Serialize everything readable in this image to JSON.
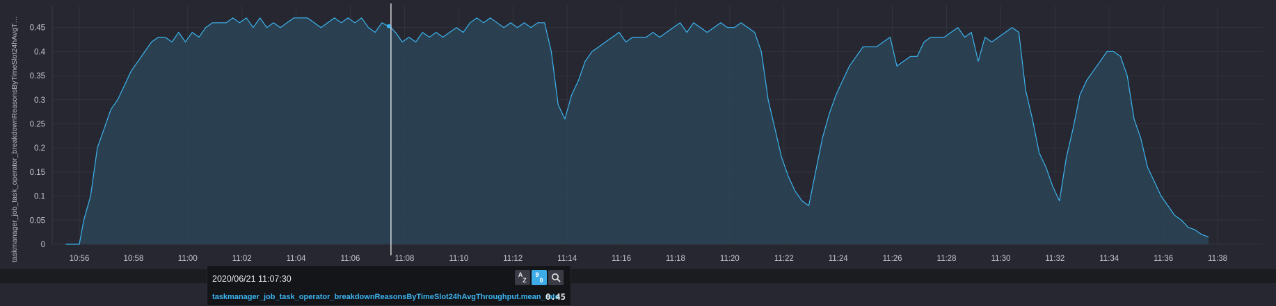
{
  "chart_data": {
    "type": "area",
    "ylabel": "taskmanager_job_task_operator_breakdownReasonsByTimeSlot24hAvgT…",
    "ylim": [
      0,
      0.5
    ],
    "yticks": [
      "0",
      "0.05",
      "0.1",
      "0.15",
      "0.2",
      "0.25",
      "0.3",
      "0.35",
      "0.4",
      "0.45"
    ],
    "xticks": [
      "10:56",
      "10:58",
      "11:00",
      "11:02",
      "11:04",
      "11:06",
      "11:08",
      "11:10",
      "11:12",
      "11:14",
      "11:16",
      "11:18",
      "11:20",
      "11:22",
      "11:24",
      "11:26",
      "11:28",
      "11:30",
      "11:32",
      "11:34",
      "11:36",
      "11:38"
    ],
    "grid": true,
    "colors": {
      "line": "#3cb4f0",
      "fill": "#2c4556",
      "cursor": "#ffffff"
    },
    "cursor_time": "11:07:30",
    "series": [
      {
        "name": "taskmanager_job_task_operator_breakdownReasonsByTimeSlot24hAvgThroughput.mean_rate",
        "points": [
          [
            "10:55:30",
            0
          ],
          [
            "10:56:00",
            0
          ],
          [
            "10:56:10",
            0.05
          ],
          [
            "10:56:25",
            0.1
          ],
          [
            "10:56:40",
            0.2
          ],
          [
            "10:56:55",
            0.24
          ],
          [
            "10:57:10",
            0.28
          ],
          [
            "10:57:25",
            0.3
          ],
          [
            "10:57:40",
            0.33
          ],
          [
            "10:57:55",
            0.36
          ],
          [
            "10:58:10",
            0.38
          ],
          [
            "10:58:25",
            0.4
          ],
          [
            "10:58:40",
            0.42
          ],
          [
            "10:58:55",
            0.43
          ],
          [
            "10:59:10",
            0.43
          ],
          [
            "10:59:25",
            0.42
          ],
          [
            "10:59:40",
            0.44
          ],
          [
            "10:59:55",
            0.42
          ],
          [
            "11:00:10",
            0.44
          ],
          [
            "11:00:25",
            0.43
          ],
          [
            "11:00:40",
            0.45
          ],
          [
            "11:00:55",
            0.46
          ],
          [
            "11:01:10",
            0.46
          ],
          [
            "11:01:25",
            0.46
          ],
          [
            "11:01:40",
            0.47
          ],
          [
            "11:01:55",
            0.46
          ],
          [
            "11:02:10",
            0.47
          ],
          [
            "11:02:25",
            0.45
          ],
          [
            "11:02:40",
            0.47
          ],
          [
            "11:02:55",
            0.45
          ],
          [
            "11:03:10",
            0.46
          ],
          [
            "11:03:25",
            0.45
          ],
          [
            "11:03:40",
            0.46
          ],
          [
            "11:03:55",
            0.47
          ],
          [
            "11:04:10",
            0.47
          ],
          [
            "11:04:25",
            0.47
          ],
          [
            "11:04:40",
            0.46
          ],
          [
            "11:04:55",
            0.45
          ],
          [
            "11:05:10",
            0.46
          ],
          [
            "11:05:25",
            0.47
          ],
          [
            "11:05:40",
            0.46
          ],
          [
            "11:05:55",
            0.47
          ],
          [
            "11:06:10",
            0.46
          ],
          [
            "11:06:25",
            0.47
          ],
          [
            "11:06:40",
            0.45
          ],
          [
            "11:06:55",
            0.44
          ],
          [
            "11:07:10",
            0.46
          ],
          [
            "11:07:30",
            0.45
          ],
          [
            "11:07:40",
            0.44
          ],
          [
            "11:07:55",
            0.42
          ],
          [
            "11:08:10",
            0.43
          ],
          [
            "11:08:25",
            0.42
          ],
          [
            "11:08:40",
            0.44
          ],
          [
            "11:08:55",
            0.43
          ],
          [
            "11:09:10",
            0.44
          ],
          [
            "11:09:25",
            0.43
          ],
          [
            "11:09:40",
            0.44
          ],
          [
            "11:09:55",
            0.45
          ],
          [
            "11:10:10",
            0.44
          ],
          [
            "11:10:25",
            0.46
          ],
          [
            "11:10:40",
            0.47
          ],
          [
            "11:10:55",
            0.46
          ],
          [
            "11:11:10",
            0.47
          ],
          [
            "11:11:25",
            0.46
          ],
          [
            "11:11:40",
            0.45
          ],
          [
            "11:11:55",
            0.46
          ],
          [
            "11:12:10",
            0.45
          ],
          [
            "11:12:25",
            0.46
          ],
          [
            "11:12:40",
            0.45
          ],
          [
            "11:12:55",
            0.46
          ],
          [
            "11:13:10",
            0.46
          ],
          [
            "11:13:25",
            0.4
          ],
          [
            "11:13:40",
            0.29
          ],
          [
            "11:13:55",
            0.26
          ],
          [
            "11:14:10",
            0.31
          ],
          [
            "11:14:25",
            0.34
          ],
          [
            "11:14:40",
            0.38
          ],
          [
            "11:14:55",
            0.4
          ],
          [
            "11:15:10",
            0.41
          ],
          [
            "11:15:25",
            0.42
          ],
          [
            "11:15:40",
            0.43
          ],
          [
            "11:15:55",
            0.44
          ],
          [
            "11:16:10",
            0.42
          ],
          [
            "11:16:25",
            0.43
          ],
          [
            "11:16:40",
            0.43
          ],
          [
            "11:16:55",
            0.43
          ],
          [
            "11:17:10",
            0.44
          ],
          [
            "11:17:25",
            0.43
          ],
          [
            "11:17:40",
            0.44
          ],
          [
            "11:17:55",
            0.45
          ],
          [
            "11:18:10",
            0.46
          ],
          [
            "11:18:25",
            0.44
          ],
          [
            "11:18:40",
            0.46
          ],
          [
            "11:18:55",
            0.45
          ],
          [
            "11:19:10",
            0.44
          ],
          [
            "11:19:25",
            0.45
          ],
          [
            "11:19:40",
            0.46
          ],
          [
            "11:19:55",
            0.45
          ],
          [
            "11:20:10",
            0.45
          ],
          [
            "11:20:25",
            0.46
          ],
          [
            "11:20:40",
            0.45
          ],
          [
            "11:20:55",
            0.44
          ],
          [
            "11:21:10",
            0.4
          ],
          [
            "11:21:25",
            0.3
          ],
          [
            "11:21:40",
            0.24
          ],
          [
            "11:21:55",
            0.18
          ],
          [
            "11:22:10",
            0.14
          ],
          [
            "11:22:25",
            0.11
          ],
          [
            "11:22:40",
            0.09
          ],
          [
            "11:22:55",
            0.08
          ],
          [
            "11:23:10",
            0.15
          ],
          [
            "11:23:25",
            0.22
          ],
          [
            "11:23:40",
            0.27
          ],
          [
            "11:23:55",
            0.31
          ],
          [
            "11:24:10",
            0.34
          ],
          [
            "11:24:25",
            0.37
          ],
          [
            "11:24:40",
            0.39
          ],
          [
            "11:24:55",
            0.41
          ],
          [
            "11:25:10",
            0.41
          ],
          [
            "11:25:25",
            0.41
          ],
          [
            "11:25:40",
            0.42
          ],
          [
            "11:25:55",
            0.43
          ],
          [
            "11:26:10",
            0.37
          ],
          [
            "11:26:25",
            0.38
          ],
          [
            "11:26:40",
            0.39
          ],
          [
            "11:26:55",
            0.39
          ],
          [
            "11:27:10",
            0.42
          ],
          [
            "11:27:25",
            0.43
          ],
          [
            "11:27:40",
            0.43
          ],
          [
            "11:27:55",
            0.43
          ],
          [
            "11:28:10",
            0.44
          ],
          [
            "11:28:25",
            0.45
          ],
          [
            "11:28:40",
            0.43
          ],
          [
            "11:28:55",
            0.44
          ],
          [
            "11:29:10",
            0.38
          ],
          [
            "11:29:25",
            0.43
          ],
          [
            "11:29:40",
            0.42
          ],
          [
            "11:29:55",
            0.43
          ],
          [
            "11:30:10",
            0.44
          ],
          [
            "11:30:25",
            0.45
          ],
          [
            "11:30:40",
            0.44
          ],
          [
            "11:30:55",
            0.32
          ],
          [
            "11:31:10",
            0.26
          ],
          [
            "11:31:25",
            0.19
          ],
          [
            "11:31:40",
            0.16
          ],
          [
            "11:31:55",
            0.12
          ],
          [
            "11:32:10",
            0.09
          ],
          [
            "11:32:25",
            0.18
          ],
          [
            "11:32:40",
            0.24
          ],
          [
            "11:32:55",
            0.31
          ],
          [
            "11:33:10",
            0.34
          ],
          [
            "11:33:25",
            0.36
          ],
          [
            "11:33:40",
            0.38
          ],
          [
            "11:33:55",
            0.4
          ],
          [
            "11:34:10",
            0.4
          ],
          [
            "11:34:25",
            0.39
          ],
          [
            "11:34:40",
            0.35
          ],
          [
            "11:34:55",
            0.26
          ],
          [
            "11:35:10",
            0.22
          ],
          [
            "11:35:25",
            0.16
          ],
          [
            "11:35:40",
            0.13
          ],
          [
            "11:35:55",
            0.1
          ],
          [
            "11:36:10",
            0.08
          ],
          [
            "11:36:25",
            0.06
          ],
          [
            "11:36:40",
            0.05
          ],
          [
            "11:36:55",
            0.035
          ],
          [
            "11:37:10",
            0.03
          ],
          [
            "11:37:25",
            0.02
          ],
          [
            "11:37:40",
            0.015
          ]
        ]
      }
    ]
  },
  "tooltip": {
    "time": "2020/06/21 11:07:30",
    "series_name": "taskmanager_job_task_operator_breakdownReasonsByTimeSlot24hAvgThroughput.mean_rate",
    "value": "0.45",
    "sort_alpha_top": "A",
    "sort_alpha_bottom": "Z",
    "sort_num_top": "9",
    "sort_num_bottom": "0",
    "search_icon": "search-icon"
  }
}
